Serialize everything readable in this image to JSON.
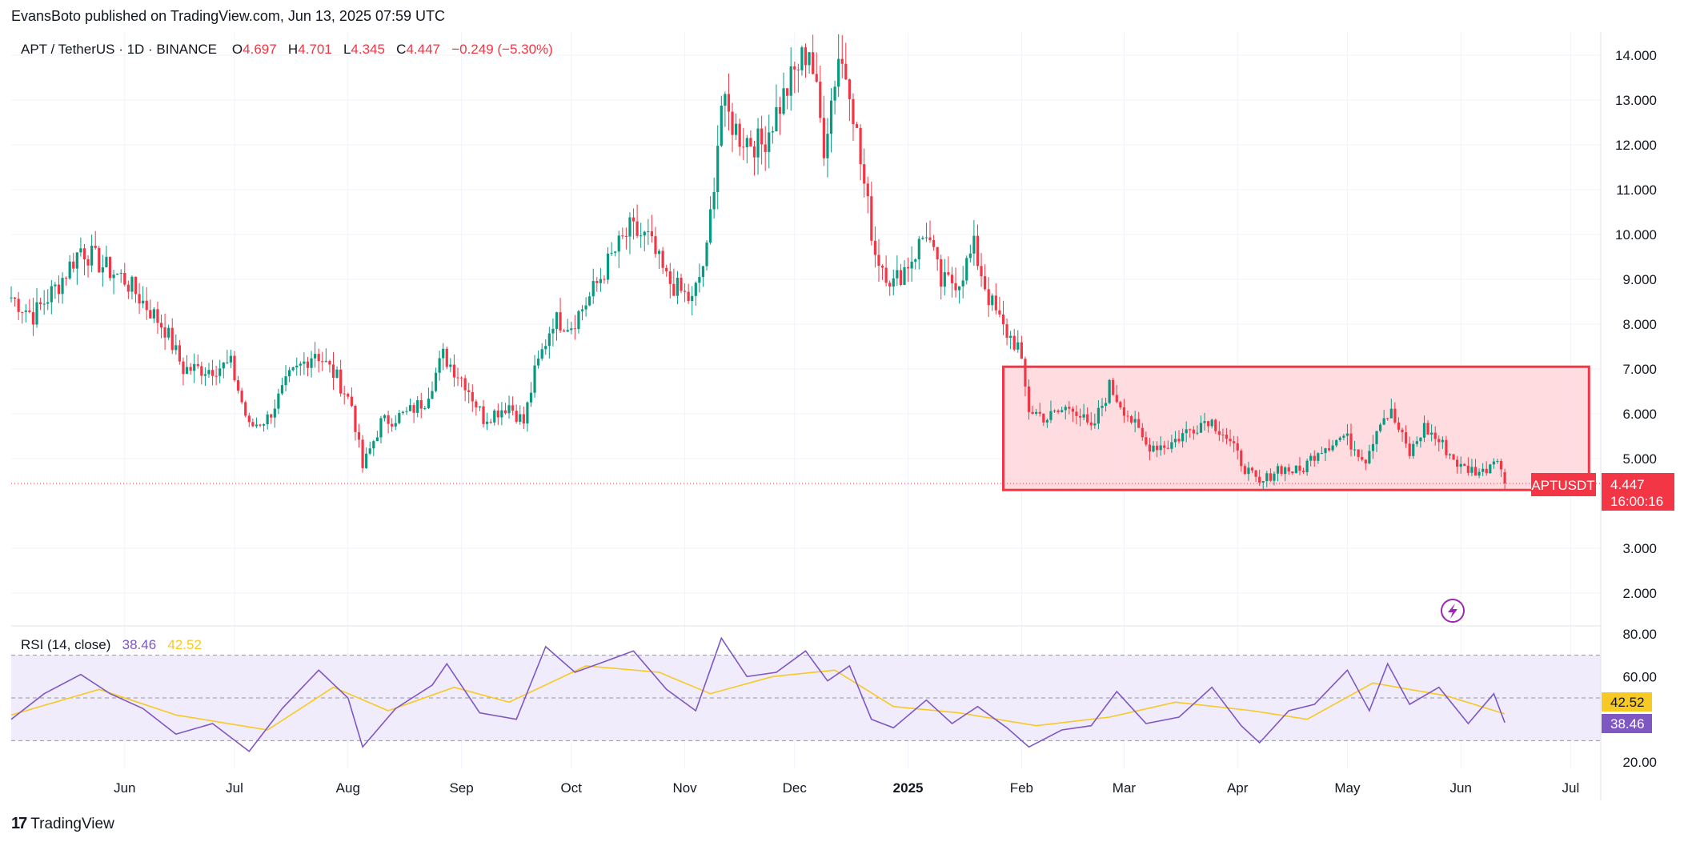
{
  "header": {
    "published": "EvansBoto published on TradingView.com, Jun 13, 2025 07:59 UTC"
  },
  "legend": {
    "symbol": "APT / TetherUS · 1D · BINANCE",
    "o_label": "O",
    "o_value": "4.697",
    "h_label": "H",
    "h_value": "4.701",
    "l_label": "L",
    "l_value": "4.345",
    "c_label": "C",
    "c_value": "4.447",
    "change": "−0.249 (−5.30%)"
  },
  "rsi_legend": {
    "title": "RSI (14, close)",
    "rsi_value": "38.46",
    "ma_value": "42.52"
  },
  "price_tag": {
    "symbol": "APTUSDT",
    "price": "4.447",
    "countdown": "16:00:16"
  },
  "rsi_tags": {
    "ma": "42.52",
    "rsi": "38.46"
  },
  "footer": {
    "brand": "TradingView"
  },
  "colors": {
    "up": "#089981",
    "down": "#f23645",
    "rsi_line": "#7e57c2",
    "rsi_ma": "#f7c925",
    "box_fill": "#ffd6da",
    "box_stroke": "#f23645",
    "rsi_band": "#f0ecfb"
  },
  "icons": {
    "lightning": "lightning-icon"
  },
  "chart_data": [
    {
      "type": "candlestick",
      "title": "APT / TetherUS · 1D · BINANCE",
      "y_ticks": [
        "14.000",
        "13.000",
        "12.000",
        "11.000",
        "10.000",
        "9.000",
        "8.000",
        "7.000",
        "6.000",
        "5.000",
        "3.000",
        "2.000"
      ],
      "x_ticks": [
        "Jun",
        "Jul",
        "Aug",
        "Sep",
        "Oct",
        "Nov",
        "Dec",
        "2025",
        "Feb",
        "Mar",
        "Apr",
        "May",
        "Jun",
        "Jul"
      ],
      "ylim": [
        1.3,
        14.5
      ],
      "grid": true,
      "current_price": 4.447,
      "annotation_box": {
        "x_start": "2025-01-27",
        "x_end": "2025-07-06",
        "y_low": 4.3,
        "y_high": 7.05
      },
      "series": [
        {
          "name": "APTUSDT",
          "anchor_points": [
            {
              "date": "2024-05-01",
              "close": 8.6
            },
            {
              "date": "2024-05-07",
              "close": 8.2
            },
            {
              "date": "2024-05-14",
              "close": 8.9
            },
            {
              "date": "2024-05-20",
              "close": 9.7
            },
            {
              "date": "2024-05-26",
              "close": 9.3
            },
            {
              "date": "2024-06-01",
              "close": 9.0
            },
            {
              "date": "2024-06-06",
              "close": 8.5
            },
            {
              "date": "2024-06-12",
              "close": 7.9
            },
            {
              "date": "2024-06-17",
              "close": 7.0
            },
            {
              "date": "2024-06-24",
              "close": 7.0
            },
            {
              "date": "2024-06-30",
              "close": 7.1
            },
            {
              "date": "2024-07-05",
              "close": 5.7
            },
            {
              "date": "2024-07-10",
              "close": 5.9
            },
            {
              "date": "2024-07-16",
              "close": 6.8
            },
            {
              "date": "2024-07-23",
              "close": 7.4
            },
            {
              "date": "2024-07-29",
              "close": 6.8
            },
            {
              "date": "2024-08-02",
              "close": 6.2
            },
            {
              "date": "2024-08-05",
              "close": 4.8
            },
            {
              "date": "2024-08-10",
              "close": 5.8
            },
            {
              "date": "2024-08-17",
              "close": 6.0
            },
            {
              "date": "2024-08-22",
              "close": 6.3
            },
            {
              "date": "2024-08-27",
              "close": 7.3
            },
            {
              "date": "2024-09-02",
              "close": 6.7
            },
            {
              "date": "2024-09-07",
              "close": 5.9
            },
            {
              "date": "2024-09-14",
              "close": 6.2
            },
            {
              "date": "2024-09-18",
              "close": 5.8
            },
            {
              "date": "2024-09-21",
              "close": 6.9
            },
            {
              "date": "2024-09-26",
              "close": 8.1
            },
            {
              "date": "2024-10-01",
              "close": 8.0
            },
            {
              "date": "2024-10-06",
              "close": 8.6
            },
            {
              "date": "2024-10-12",
              "close": 9.5
            },
            {
              "date": "2024-10-17",
              "close": 10.1
            },
            {
              "date": "2024-10-22",
              "close": 9.9
            },
            {
              "date": "2024-10-27",
              "close": 9.0
            },
            {
              "date": "2024-11-03",
              "close": 8.5
            },
            {
              "date": "2024-11-07",
              "close": 9.6
            },
            {
              "date": "2024-11-11",
              "close": 12.9
            },
            {
              "date": "2024-11-16",
              "close": 12.2
            },
            {
              "date": "2024-11-22",
              "close": 12.0
            },
            {
              "date": "2024-11-27",
              "close": 12.9
            },
            {
              "date": "2024-12-01",
              "close": 13.6
            },
            {
              "date": "2024-12-05",
              "close": 14.2
            },
            {
              "date": "2024-12-09",
              "close": 12.0
            },
            {
              "date": "2024-12-13",
              "close": 14.0
            },
            {
              "date": "2024-12-16",
              "close": 13.4
            },
            {
              "date": "2024-12-19",
              "close": 11.6
            },
            {
              "date": "2024-12-23",
              "close": 9.6
            },
            {
              "date": "2024-12-28",
              "close": 8.9
            },
            {
              "date": "2025-01-03",
              "close": 9.6
            },
            {
              "date": "2025-01-06",
              "close": 10.1
            },
            {
              "date": "2025-01-10",
              "close": 8.9
            },
            {
              "date": "2025-01-15",
              "close": 9.0
            },
            {
              "date": "2025-01-19",
              "close": 9.7
            },
            {
              "date": "2025-01-23",
              "close": 8.6
            },
            {
              "date": "2025-01-27",
              "close": 7.9
            },
            {
              "date": "2025-01-31",
              "close": 7.5
            },
            {
              "date": "2025-02-03",
              "close": 6.1
            },
            {
              "date": "2025-02-08",
              "close": 5.9
            },
            {
              "date": "2025-02-15",
              "close": 6.2
            },
            {
              "date": "2025-02-20",
              "close": 5.6
            },
            {
              "date": "2025-02-25",
              "close": 6.6
            },
            {
              "date": "2025-03-02",
              "close": 6.0
            },
            {
              "date": "2025-03-07",
              "close": 5.3
            },
            {
              "date": "2025-03-13",
              "close": 5.3
            },
            {
              "date": "2025-03-18",
              "close": 5.6
            },
            {
              "date": "2025-03-24",
              "close": 5.9
            },
            {
              "date": "2025-03-28",
              "close": 5.6
            },
            {
              "date": "2025-04-03",
              "close": 4.8
            },
            {
              "date": "2025-04-07",
              "close": 4.4
            },
            {
              "date": "2025-04-12",
              "close": 4.8
            },
            {
              "date": "2025-04-18",
              "close": 4.7
            },
            {
              "date": "2025-04-23",
              "close": 5.2
            },
            {
              "date": "2025-04-30",
              "close": 5.5
            },
            {
              "date": "2025-05-06",
              "close": 5.0
            },
            {
              "date": "2025-05-10",
              "close": 5.9
            },
            {
              "date": "2025-05-13",
              "close": 6.0
            },
            {
              "date": "2025-05-18",
              "close": 5.1
            },
            {
              "date": "2025-05-22",
              "close": 5.7
            },
            {
              "date": "2025-05-27",
              "close": 5.3
            },
            {
              "date": "2025-06-01",
              "close": 4.8
            },
            {
              "date": "2025-06-07",
              "close": 4.7
            },
            {
              "date": "2025-06-11",
              "close": 5.1
            },
            {
              "date": "2025-06-13",
              "close": 4.447
            }
          ]
        }
      ]
    },
    {
      "type": "line",
      "title": "RSI (14, close)",
      "y_ticks": [
        "80.00",
        "60.00",
        "20.00"
      ],
      "ylim": [
        16,
        85
      ],
      "band": [
        30,
        70
      ],
      "midline": 50,
      "series": [
        {
          "name": "RSI",
          "anchor_points": [
            {
              "date": "2024-05-01",
              "value": 40
            },
            {
              "date": "2024-05-10",
              "value": 52
            },
            {
              "date": "2024-05-20",
              "value": 61
            },
            {
              "date": "2024-05-28",
              "value": 52
            },
            {
              "date": "2024-06-06",
              "value": 45
            },
            {
              "date": "2024-06-15",
              "value": 33
            },
            {
              "date": "2024-06-25",
              "value": 38
            },
            {
              "date": "2024-07-05",
              "value": 25
            },
            {
              "date": "2024-07-14",
              "value": 45
            },
            {
              "date": "2024-07-24",
              "value": 63
            },
            {
              "date": "2024-08-01",
              "value": 50
            },
            {
              "date": "2024-08-05",
              "value": 27
            },
            {
              "date": "2024-08-14",
              "value": 45
            },
            {
              "date": "2024-08-24",
              "value": 56
            },
            {
              "date": "2024-08-28",
              "value": 66
            },
            {
              "date": "2024-09-06",
              "value": 43
            },
            {
              "date": "2024-09-16",
              "value": 40
            },
            {
              "date": "2024-09-24",
              "value": 74
            },
            {
              "date": "2024-10-02",
              "value": 62
            },
            {
              "date": "2024-10-10",
              "value": 67
            },
            {
              "date": "2024-10-18",
              "value": 72
            },
            {
              "date": "2024-10-27",
              "value": 54
            },
            {
              "date": "2024-11-04",
              "value": 44
            },
            {
              "date": "2024-11-11",
              "value": 78
            },
            {
              "date": "2024-11-18",
              "value": 60
            },
            {
              "date": "2024-11-26",
              "value": 62
            },
            {
              "date": "2024-12-04",
              "value": 72
            },
            {
              "date": "2024-12-10",
              "value": 58
            },
            {
              "date": "2024-12-16",
              "value": 65
            },
            {
              "date": "2024-12-22",
              "value": 40
            },
            {
              "date": "2024-12-28",
              "value": 36
            },
            {
              "date": "2025-01-06",
              "value": 49
            },
            {
              "date": "2025-01-13",
              "value": 38
            },
            {
              "date": "2025-01-20",
              "value": 46
            },
            {
              "date": "2025-01-28",
              "value": 36
            },
            {
              "date": "2025-02-03",
              "value": 27
            },
            {
              "date": "2025-02-12",
              "value": 35
            },
            {
              "date": "2025-02-20",
              "value": 37
            },
            {
              "date": "2025-02-27",
              "value": 53
            },
            {
              "date": "2025-03-07",
              "value": 38
            },
            {
              "date": "2025-03-16",
              "value": 41
            },
            {
              "date": "2025-03-25",
              "value": 55
            },
            {
              "date": "2025-04-02",
              "value": 37
            },
            {
              "date": "2025-04-07",
              "value": 29
            },
            {
              "date": "2025-04-15",
              "value": 44
            },
            {
              "date": "2025-04-22",
              "value": 47
            },
            {
              "date": "2025-05-01",
              "value": 63
            },
            {
              "date": "2025-05-07",
              "value": 44
            },
            {
              "date": "2025-05-12",
              "value": 66
            },
            {
              "date": "2025-05-18",
              "value": 47
            },
            {
              "date": "2025-05-26",
              "value": 55
            },
            {
              "date": "2025-06-03",
              "value": 38
            },
            {
              "date": "2025-06-10",
              "value": 52
            },
            {
              "date": "2025-06-13",
              "value": 38.46
            }
          ]
        },
        {
          "name": "RSI-based MA",
          "anchor_points": [
            {
              "date": "2024-05-01",
              "value": 42
            },
            {
              "date": "2024-05-25",
              "value": 54
            },
            {
              "date": "2024-06-15",
              "value": 42
            },
            {
              "date": "2024-07-10",
              "value": 35
            },
            {
              "date": "2024-07-28",
              "value": 55
            },
            {
              "date": "2024-08-12",
              "value": 44
            },
            {
              "date": "2024-08-30",
              "value": 55
            },
            {
              "date": "2024-09-14",
              "value": 48
            },
            {
              "date": "2024-10-05",
              "value": 65
            },
            {
              "date": "2024-10-25",
              "value": 62
            },
            {
              "date": "2024-11-08",
              "value": 52
            },
            {
              "date": "2024-11-25",
              "value": 60
            },
            {
              "date": "2024-12-12",
              "value": 63
            },
            {
              "date": "2024-12-28",
              "value": 46
            },
            {
              "date": "2025-01-15",
              "value": 43
            },
            {
              "date": "2025-02-05",
              "value": 37
            },
            {
              "date": "2025-02-25",
              "value": 41
            },
            {
              "date": "2025-03-15",
              "value": 48
            },
            {
              "date": "2025-04-05",
              "value": 44
            },
            {
              "date": "2025-04-20",
              "value": 40
            },
            {
              "date": "2025-05-08",
              "value": 57
            },
            {
              "date": "2025-05-28",
              "value": 51
            },
            {
              "date": "2025-06-13",
              "value": 42.52
            }
          ]
        }
      ]
    }
  ]
}
